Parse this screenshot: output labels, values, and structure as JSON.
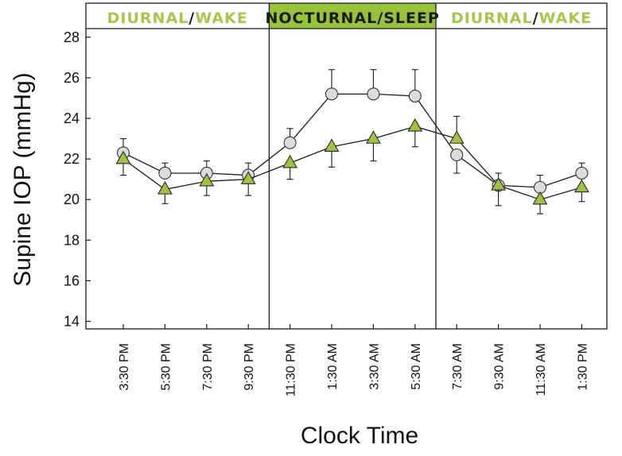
{
  "chart_data": {
    "type": "line",
    "title": "",
    "xlabel": "Clock Time",
    "ylabel": "Supine IOP (mmHg)",
    "ylim": [
      14,
      28
    ],
    "yticks": [
      14,
      16,
      18,
      20,
      22,
      24,
      26,
      28
    ],
    "grid": false,
    "categories": [
      "3:30 PM",
      "5:30 PM",
      "7:30 PM",
      "9:30 PM",
      "11:30 PM",
      "1:30 AM",
      "3:30 AM",
      "5:30 AM",
      "7:30 AM",
      "9:30 AM",
      "11:30 AM",
      "1:30 PM"
    ],
    "bands": [
      {
        "label_a": "DIURNAL",
        "sep": "/",
        "label_b": "WAKE",
        "highlight": false,
        "from_index": 0,
        "to_index": 4
      },
      {
        "label_a": "NOCTURNAL",
        "sep": "/",
        "label_b": "SLEEP",
        "highlight": true,
        "from_index": 4,
        "to_index": 8
      },
      {
        "label_a": "DIURNAL",
        "sep": "/",
        "label_b": "WAKE",
        "highlight": false,
        "from_index": 8,
        "to_index": 12
      }
    ],
    "series": [
      {
        "marker": "circle",
        "color": "#dcdcdc",
        "values": [
          22.3,
          21.3,
          21.3,
          21.2,
          22.8,
          25.2,
          25.2,
          25.1,
          22.2,
          20.7,
          20.6,
          21.3
        ],
        "error": [
          0.7,
          0.5,
          0.6,
          0.6,
          0.7,
          1.2,
          1.2,
          1.3,
          0.9,
          0.6,
          0.6,
          0.5
        ],
        "error_dir": [
          "up",
          "up",
          "up",
          "up",
          "up",
          "up",
          "up",
          "up",
          "down",
          "up",
          "up",
          "up"
        ]
      },
      {
        "marker": "triangle",
        "color": "#9fc241",
        "values": [
          22.0,
          20.5,
          20.9,
          21.0,
          21.8,
          22.6,
          23.0,
          23.6,
          23.0,
          20.7,
          20.0,
          20.6
        ],
        "error": [
          0.8,
          0.7,
          0.7,
          0.8,
          0.8,
          1.0,
          1.1,
          1.0,
          1.1,
          1.0,
          0.7,
          0.7
        ],
        "error_dir": [
          "down",
          "down",
          "down",
          "down",
          "down",
          "down",
          "down",
          "down",
          "up",
          "down",
          "down",
          "down"
        ]
      }
    ],
    "colors": {
      "band_highlight": "#99c23c",
      "band_text_green": "#a6c84a",
      "band_text_dark": "#1a1a1a",
      "line": "#1a1a1a"
    }
  }
}
